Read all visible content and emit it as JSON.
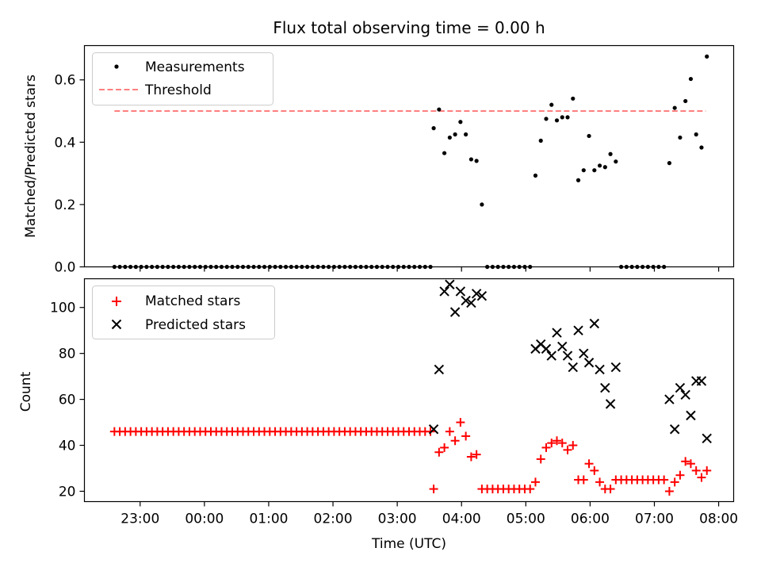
{
  "title": "Flux total observing time = 0.00 h",
  "chart_data": [
    {
      "type": "scatter",
      "panel": "top",
      "ylabel": "Matched/Predicted stars",
      "ylim": [
        0,
        0.71
      ],
      "yticks": [
        0.0,
        0.2,
        0.4,
        0.6
      ],
      "ytick_labels": [
        "0.0",
        "0.2",
        "0.4",
        "0.6"
      ],
      "grid": false,
      "legend_location": "upper-left",
      "threshold": {
        "name": "Threshold",
        "value": 0.5,
        "color": "#ff7f7f",
        "x_range": [
          "22:36",
          "07:48"
        ]
      },
      "series": [
        {
          "name": "Measurements",
          "color": "#000000",
          "marker": "dot",
          "points": [
            [
              "22:36",
              0
            ],
            [
              "22:41",
              0
            ],
            [
              "22:46",
              0
            ],
            [
              "22:51",
              0
            ],
            [
              "22:56",
              0
            ],
            [
              "23:01",
              0
            ],
            [
              "23:06",
              0
            ],
            [
              "23:11",
              0
            ],
            [
              "23:16",
              0
            ],
            [
              "23:21",
              0
            ],
            [
              "23:26",
              0
            ],
            [
              "23:31",
              0
            ],
            [
              "23:36",
              0
            ],
            [
              "23:41",
              0
            ],
            [
              "23:46",
              0
            ],
            [
              "23:51",
              0
            ],
            [
              "23:56",
              0
            ],
            [
              "00:01",
              0
            ],
            [
              "00:06",
              0
            ],
            [
              "00:11",
              0
            ],
            [
              "00:16",
              0
            ],
            [
              "00:21",
              0
            ],
            [
              "00:26",
              0
            ],
            [
              "00:31",
              0
            ],
            [
              "00:36",
              0
            ],
            [
              "00:41",
              0
            ],
            [
              "00:46",
              0
            ],
            [
              "00:51",
              0
            ],
            [
              "00:56",
              0
            ],
            [
              "01:01",
              0
            ],
            [
              "01:06",
              0
            ],
            [
              "01:11",
              0
            ],
            [
              "01:16",
              0
            ],
            [
              "01:21",
              0
            ],
            [
              "01:26",
              0
            ],
            [
              "01:31",
              0
            ],
            [
              "01:36",
              0
            ],
            [
              "01:41",
              0
            ],
            [
              "01:46",
              0
            ],
            [
              "01:51",
              0
            ],
            [
              "01:56",
              0
            ],
            [
              "02:01",
              0
            ],
            [
              "02:06",
              0
            ],
            [
              "02:11",
              0
            ],
            [
              "02:16",
              0
            ],
            [
              "02:21",
              0
            ],
            [
              "02:26",
              0
            ],
            [
              "02:31",
              0
            ],
            [
              "02:36",
              0
            ],
            [
              "02:41",
              0
            ],
            [
              "02:46",
              0
            ],
            [
              "02:51",
              0
            ],
            [
              "02:56",
              0
            ],
            [
              "03:01",
              0
            ],
            [
              "03:06",
              0
            ],
            [
              "03:11",
              0
            ],
            [
              "03:16",
              0
            ],
            [
              "03:21",
              0
            ],
            [
              "03:26",
              0
            ],
            [
              "03:31",
              0
            ],
            [
              "03:34",
              0.445
            ],
            [
              "03:39",
              0.505
            ],
            [
              "03:44",
              0.365
            ],
            [
              "03:49",
              0.415
            ],
            [
              "03:54",
              0.425
            ],
            [
              "03:59",
              0.465
            ],
            [
              "04:04",
              0.425
            ],
            [
              "04:09",
              0.345
            ],
            [
              "04:14",
              0.34
            ],
            [
              "04:19",
              0.2
            ],
            [
              "04:24",
              0
            ],
            [
              "04:29",
              0
            ],
            [
              "04:34",
              0
            ],
            [
              "04:39",
              0
            ],
            [
              "04:44",
              0
            ],
            [
              "04:49",
              0
            ],
            [
              "04:54",
              0
            ],
            [
              "04:59",
              0
            ],
            [
              "05:04",
              0
            ],
            [
              "05:09",
              0.293
            ],
            [
              "05:14",
              0.405
            ],
            [
              "05:19",
              0.475
            ],
            [
              "05:24",
              0.52
            ],
            [
              "05:29",
              0.47
            ],
            [
              "05:34",
              0.48
            ],
            [
              "05:39",
              0.48
            ],
            [
              "05:44",
              0.54
            ],
            [
              "05:49",
              0.278
            ],
            [
              "05:54",
              0.31
            ],
            [
              "05:59",
              0.42
            ],
            [
              "06:04",
              0.31
            ],
            [
              "06:09",
              0.325
            ],
            [
              "06:14",
              0.32
            ],
            [
              "06:19",
              0.362
            ],
            [
              "06:24",
              0.338
            ],
            [
              "06:29",
              0
            ],
            [
              "06:34",
              0
            ],
            [
              "06:39",
              0
            ],
            [
              "06:44",
              0
            ],
            [
              "06:49",
              0
            ],
            [
              "06:54",
              0
            ],
            [
              "06:59",
              0
            ],
            [
              "07:04",
              0
            ],
            [
              "07:09",
              0
            ],
            [
              "07:14",
              0.333
            ],
            [
              "07:19",
              0.51
            ],
            [
              "07:24",
              0.415
            ],
            [
              "07:29",
              0.532
            ],
            [
              "07:34",
              0.603
            ],
            [
              "07:39",
              0.425
            ],
            [
              "07:44",
              0.383
            ],
            [
              "07:49",
              0.675
            ]
          ]
        }
      ]
    },
    {
      "type": "scatter",
      "panel": "bottom",
      "xlabel": "Time (UTC)",
      "ylabel": "Count",
      "ylim": [
        15.5,
        112.5
      ],
      "yticks": [
        20,
        40,
        60,
        80,
        100
      ],
      "ytick_labels": [
        "20",
        "40",
        "60",
        "80",
        "100"
      ],
      "xlim": [
        "22:08",
        "08:14"
      ],
      "xticks": [
        "23:00",
        "00:00",
        "01:00",
        "02:00",
        "03:00",
        "04:00",
        "05:00",
        "06:00",
        "07:00",
        "08:00"
      ],
      "xtick_labels": [
        "23:00",
        "00:00",
        "01:00",
        "02:00",
        "03:00",
        "04:00",
        "05:00",
        "06:00",
        "07:00",
        "08:00"
      ],
      "grid": false,
      "legend_location": "upper-left",
      "series": [
        {
          "name": "Matched stars",
          "color": "#ff0000",
          "marker": "plus",
          "points": [
            [
              "22:36",
              46
            ],
            [
              "22:41",
              46
            ],
            [
              "22:46",
              46
            ],
            [
              "22:51",
              46
            ],
            [
              "22:56",
              46
            ],
            [
              "23:01",
              46
            ],
            [
              "23:06",
              46
            ],
            [
              "23:11",
              46
            ],
            [
              "23:16",
              46
            ],
            [
              "23:21",
              46
            ],
            [
              "23:26",
              46
            ],
            [
              "23:31",
              46
            ],
            [
              "23:36",
              46
            ],
            [
              "23:41",
              46
            ],
            [
              "23:46",
              46
            ],
            [
              "23:51",
              46
            ],
            [
              "23:56",
              46
            ],
            [
              "00:01",
              46
            ],
            [
              "00:06",
              46
            ],
            [
              "00:11",
              46
            ],
            [
              "00:16",
              46
            ],
            [
              "00:21",
              46
            ],
            [
              "00:26",
              46
            ],
            [
              "00:31",
              46
            ],
            [
              "00:36",
              46
            ],
            [
              "00:41",
              46
            ],
            [
              "00:46",
              46
            ],
            [
              "00:51",
              46
            ],
            [
              "00:56",
              46
            ],
            [
              "01:01",
              46
            ],
            [
              "01:06",
              46
            ],
            [
              "01:11",
              46
            ],
            [
              "01:16",
              46
            ],
            [
              "01:21",
              46
            ],
            [
              "01:26",
              46
            ],
            [
              "01:31",
              46
            ],
            [
              "01:36",
              46
            ],
            [
              "01:41",
              46
            ],
            [
              "01:46",
              46
            ],
            [
              "01:51",
              46
            ],
            [
              "01:56",
              46
            ],
            [
              "02:01",
              46
            ],
            [
              "02:06",
              46
            ],
            [
              "02:11",
              46
            ],
            [
              "02:16",
              46
            ],
            [
              "02:21",
              46
            ],
            [
              "02:26",
              46
            ],
            [
              "02:31",
              46
            ],
            [
              "02:36",
              46
            ],
            [
              "02:41",
              46
            ],
            [
              "02:46",
              46
            ],
            [
              "02:51",
              46
            ],
            [
              "02:56",
              46
            ],
            [
              "03:01",
              46
            ],
            [
              "03:06",
              46
            ],
            [
              "03:11",
              46
            ],
            [
              "03:16",
              46
            ],
            [
              "03:21",
              46
            ],
            [
              "03:26",
              46
            ],
            [
              "03:31",
              46
            ],
            [
              "03:34",
              21
            ],
            [
              "03:39",
              37
            ],
            [
              "03:44",
              39
            ],
            [
              "03:49",
              46
            ],
            [
              "03:54",
              42
            ],
            [
              "03:59",
              50
            ],
            [
              "04:04",
              44
            ],
            [
              "04:09",
              35
            ],
            [
              "04:14",
              36
            ],
            [
              "04:19",
              21
            ],
            [
              "04:24",
              21
            ],
            [
              "04:29",
              21
            ],
            [
              "04:34",
              21
            ],
            [
              "04:39",
              21
            ],
            [
              "04:44",
              21
            ],
            [
              "04:49",
              21
            ],
            [
              "04:54",
              21
            ],
            [
              "04:59",
              21
            ],
            [
              "05:04",
              21
            ],
            [
              "05:09",
              24
            ],
            [
              "05:14",
              34
            ],
            [
              "05:19",
              39
            ],
            [
              "05:24",
              41
            ],
            [
              "05:29",
              42
            ],
            [
              "05:34",
              41
            ],
            [
              "05:39",
              38
            ],
            [
              "05:44",
              40
            ],
            [
              "05:49",
              25
            ],
            [
              "05:54",
              25
            ],
            [
              "05:59",
              32
            ],
            [
              "06:04",
              29
            ],
            [
              "06:09",
              24
            ],
            [
              "06:14",
              21
            ],
            [
              "06:19",
              21
            ],
            [
              "06:24",
              25
            ],
            [
              "06:29",
              25
            ],
            [
              "06:34",
              25
            ],
            [
              "06:39",
              25
            ],
            [
              "06:44",
              25
            ],
            [
              "06:49",
              25
            ],
            [
              "06:54",
              25
            ],
            [
              "06:59",
              25
            ],
            [
              "07:04",
              25
            ],
            [
              "07:09",
              25
            ],
            [
              "07:14",
              20
            ],
            [
              "07:19",
              24
            ],
            [
              "07:24",
              27
            ],
            [
              "07:29",
              33
            ],
            [
              "07:34",
              32
            ],
            [
              "07:39",
              29
            ],
            [
              "07:44",
              26
            ],
            [
              "07:49",
              29
            ]
          ]
        },
        {
          "name": "Predicted stars",
          "color": "#000000",
          "marker": "cross",
          "points": [
            [
              "03:34",
              47
            ],
            [
              "03:39",
              73
            ],
            [
              "03:44",
              107
            ],
            [
              "03:49",
              110
            ],
            [
              "03:54",
              98
            ],
            [
              "03:59",
              107
            ],
            [
              "04:04",
              103
            ],
            [
              "04:09",
              102
            ],
            [
              "04:14",
              106
            ],
            [
              "04:19",
              105
            ],
            [
              "05:09",
              82
            ],
            [
              "05:14",
              84
            ],
            [
              "05:19",
              82
            ],
            [
              "05:24",
              79
            ],
            [
              "05:29",
              89
            ],
            [
              "05:34",
              83
            ],
            [
              "05:39",
              79
            ],
            [
              "05:44",
              74
            ],
            [
              "05:49",
              90
            ],
            [
              "05:54",
              80
            ],
            [
              "05:59",
              76
            ],
            [
              "06:04",
              93
            ],
            [
              "06:09",
              73
            ],
            [
              "06:14",
              65
            ],
            [
              "06:19",
              58
            ],
            [
              "06:24",
              74
            ],
            [
              "07:14",
              60
            ],
            [
              "07:19",
              47
            ],
            [
              "07:24",
              65
            ],
            [
              "07:29",
              62
            ],
            [
              "07:34",
              53
            ],
            [
              "07:39",
              68
            ],
            [
              "07:44",
              68
            ],
            [
              "07:49",
              43
            ]
          ]
        }
      ]
    }
  ]
}
